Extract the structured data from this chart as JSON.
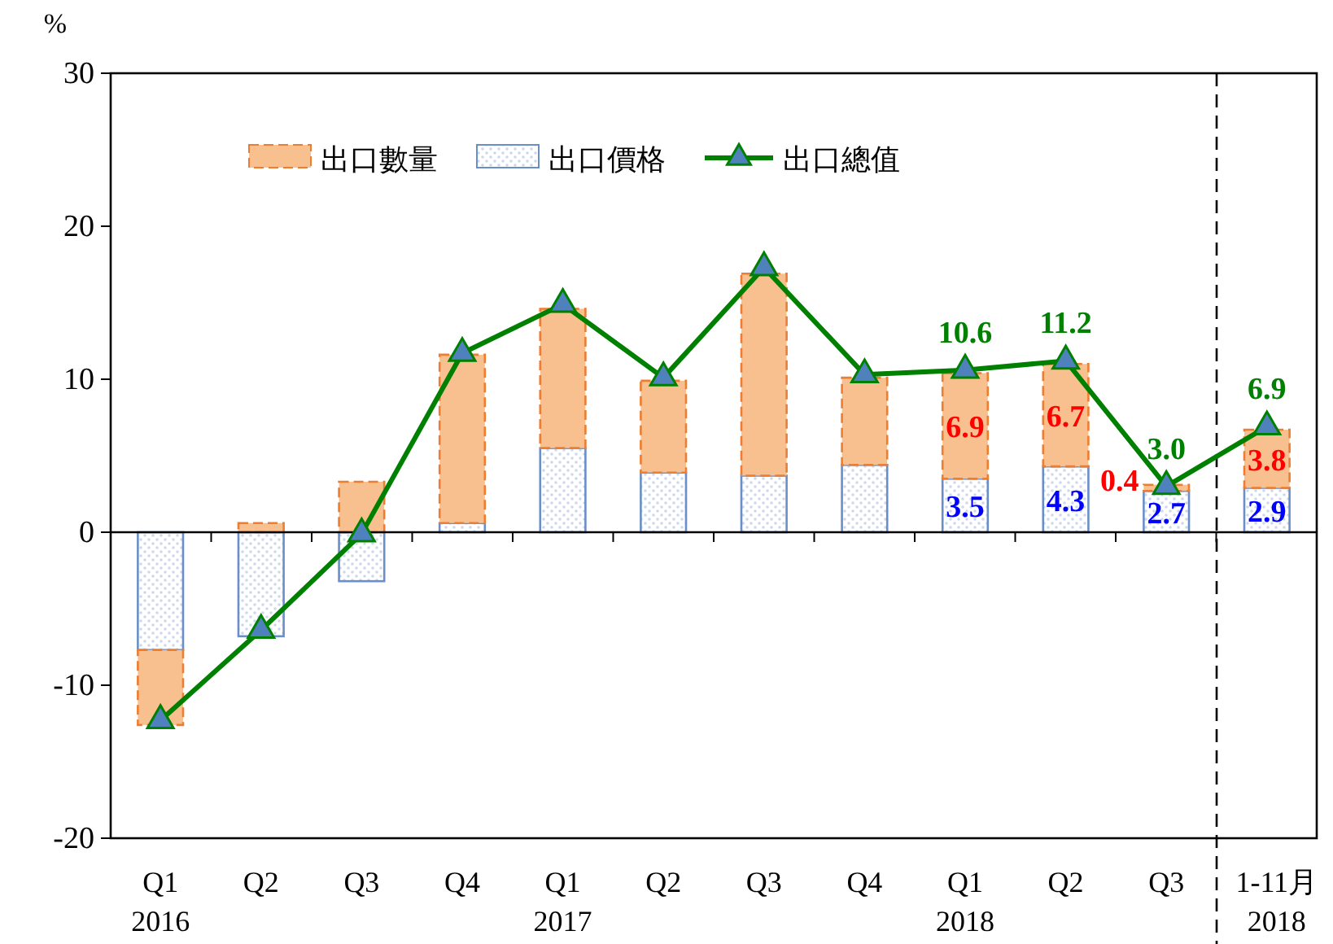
{
  "chart_data": {
    "type": "bar",
    "stacked": true,
    "ylabel": "%",
    "categories": [
      "Q1\n2016",
      "Q2",
      "Q3",
      "Q4",
      "Q1\n2017",
      "Q2",
      "Q3",
      "Q4",
      "Q1\n2018",
      "Q2",
      "Q3",
      "1-11月\n2018"
    ],
    "series": [
      {
        "name": "出口價格",
        "color": "#6a8fc8",
        "values": [
          -7.7,
          -6.8,
          -3.2,
          0.6,
          5.5,
          3.9,
          3.7,
          4.4,
          3.5,
          4.3,
          2.7,
          2.9
        ],
        "value_labels": [
          null,
          null,
          null,
          null,
          null,
          null,
          null,
          null,
          "3.5",
          "4.3",
          "2.7",
          "2.9"
        ]
      },
      {
        "name": "出口數量",
        "color": "#f8c08e",
        "values": [
          -4.9,
          0.6,
          3.3,
          11.0,
          9.1,
          6.0,
          13.2,
          5.7,
          6.9,
          6.7,
          0.4,
          3.8
        ],
        "value_labels": [
          null,
          null,
          null,
          null,
          null,
          null,
          null,
          null,
          "6.9",
          "6.7",
          "0.4",
          "3.8"
        ]
      },
      {
        "name": "出口總值",
        "type": "line",
        "color": "#008000",
        "marker": "triangle",
        "values": [
          -12.3,
          -6.4,
          -0.1,
          11.7,
          14.9,
          10.1,
          17.3,
          10.3,
          10.6,
          11.2,
          3.0,
          6.9
        ],
        "value_labels": [
          null,
          null,
          null,
          null,
          null,
          null,
          null,
          null,
          "10.6",
          "11.2",
          "3.0",
          "6.9"
        ]
      }
    ],
    "ylim": [
      -20,
      30
    ],
    "yticks": [
      -20,
      -10,
      0,
      10,
      20,
      30
    ],
    "grid": false,
    "legend": "top left",
    "ref_lines": [
      {
        "axis": "x",
        "value": "1-11月\n2018",
        "line_style": "dashed",
        "color": "#000000"
      }
    ]
  }
}
